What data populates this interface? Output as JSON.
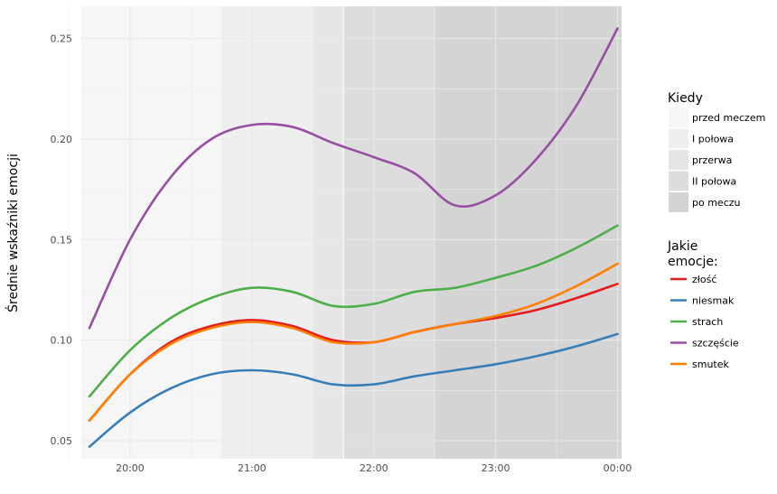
{
  "chart_data": {
    "type": "line",
    "title": "",
    "xlabel": "",
    "ylabel": "Średnie wskaźniki emocji",
    "x_tick_labels": [
      "20:00",
      "21:00",
      "22:00",
      "23:00",
      "00:00"
    ],
    "x_ticks": [
      "20:00",
      "21:00",
      "22:00",
      "23:00",
      "00:00"
    ],
    "xlim": [
      "19:36",
      "00:02"
    ],
    "y_ticks": [
      0.05,
      0.1,
      0.15,
      0.2,
      0.25
    ],
    "y_tick_labels": [
      "0.05",
      "0.10",
      "0.15",
      "0.20",
      "0.25"
    ],
    "ylim": [
      0.041,
      0.266
    ],
    "grid": true,
    "background_periods": {
      "title": "Kiedy",
      "items": [
        {
          "label": "przed meczem",
          "start": "19:36",
          "end": "20:45",
          "color": "#f6f6f6"
        },
        {
          "label": "I połowa",
          "start": "20:45",
          "end": "21:30",
          "color": "#efefef"
        },
        {
          "label": "przerwa",
          "start": "21:30",
          "end": "21:45",
          "color": "#e6e6e6"
        },
        {
          "label": "II połowa",
          "start": "21:45",
          "end": "22:30",
          "color": "#dddddd"
        },
        {
          "label": "po meczu",
          "start": "22:30",
          "end": "00:02",
          "color": "#d4d4d4"
        }
      ]
    },
    "legend": {
      "title_line1": "Jakie",
      "title_line2": "emocje:",
      "placement": "right"
    },
    "x": [
      "19:40",
      "20:00",
      "20:20",
      "20:40",
      "21:00",
      "21:20",
      "21:40",
      "22:00",
      "22:20",
      "22:40",
      "23:00",
      "23:20",
      "23:40",
      "00:00"
    ],
    "series": [
      {
        "name": "złość",
        "color": "#e41a1c",
        "values": [
          0.06,
          0.083,
          0.099,
          0.107,
          0.11,
          0.107,
          0.1,
          0.099,
          0.104,
          0.108,
          0.111,
          0.115,
          0.121,
          0.128
        ]
      },
      {
        "name": "niesmak",
        "color": "#377eb8",
        "values": [
          0.047,
          0.064,
          0.076,
          0.083,
          0.085,
          0.083,
          0.078,
          0.078,
          0.082,
          0.085,
          0.088,
          0.092,
          0.097,
          0.103
        ]
      },
      {
        "name": "strach",
        "color": "#4daf4a",
        "values": [
          0.072,
          0.095,
          0.111,
          0.121,
          0.126,
          0.124,
          0.117,
          0.118,
          0.124,
          0.126,
          0.131,
          0.137,
          0.146,
          0.157
        ]
      },
      {
        "name": "szczęście",
        "color": "#984ea3",
        "values": [
          0.106,
          0.15,
          0.181,
          0.2,
          0.207,
          0.206,
          0.198,
          0.191,
          0.183,
          0.167,
          0.172,
          0.19,
          0.217,
          0.255
        ]
      },
      {
        "name": "smutek",
        "color": "#ff7f00",
        "values": [
          0.06,
          0.083,
          0.098,
          0.106,
          0.109,
          0.106,
          0.099,
          0.099,
          0.104,
          0.108,
          0.112,
          0.118,
          0.127,
          0.138
        ]
      }
    ]
  }
}
